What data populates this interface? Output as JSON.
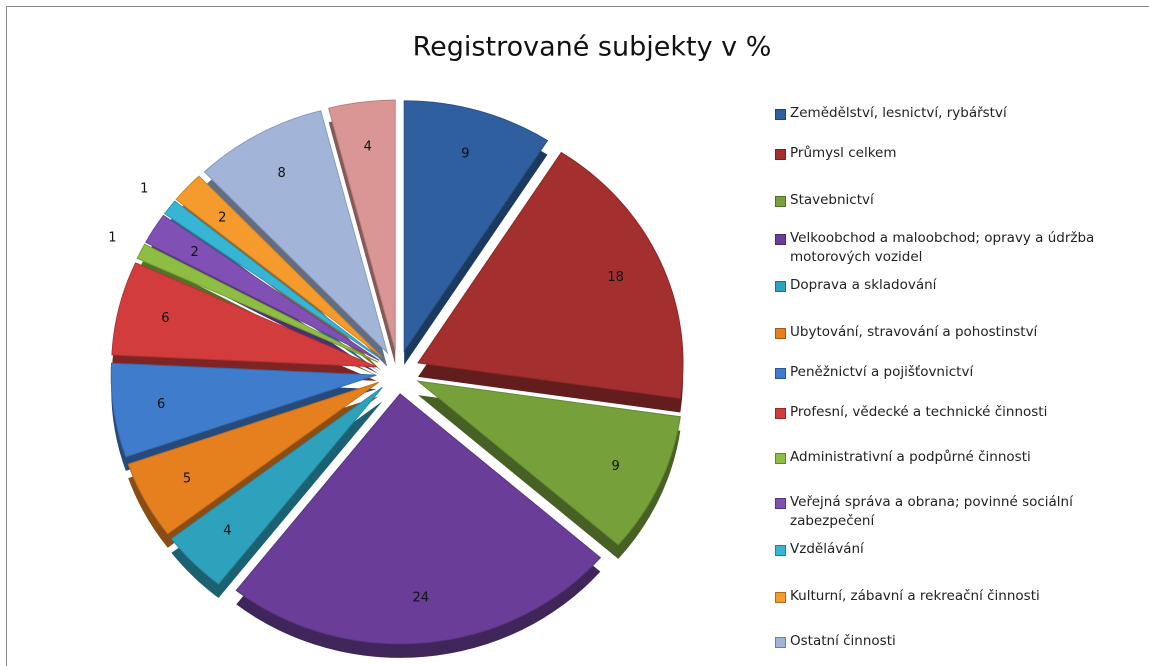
{
  "chart_data": {
    "type": "pie",
    "title": "Registrované subjekty v %",
    "categories": [
      "Zemědělství, lesnictví, rybářství",
      "Průmysl celkem",
      "Stavebnictví",
      "Velkoobchod a maloobchod; opravy a údržba motorových vozidel",
      "Doprava a skladování",
      "Ubytování, stravování a pohostinství",
      "Peněžnictví a pojišťovnictví",
      "Profesní, vědecké a technické činnosti",
      "Administrativní a podpůrné činnosti",
      "Veřejná správa a obrana; povinné sociální zabezpečení",
      "Vzdělávání",
      "Kulturní, zábavní a rekreační činnosti",
      "Ostatní činnosti",
      null
    ],
    "values": [
      9,
      18,
      9,
      24,
      4,
      5,
      6,
      6,
      1,
      2,
      1,
      2,
      8,
      4
    ],
    "colors": [
      "#2f5f9f",
      "#a3302f",
      "#76a03a",
      "#6a3e98",
      "#2ea2bd",
      "#e6801f",
      "#3f7ccc",
      "#d23c3c",
      "#8dbd43",
      "#8150b5",
      "#36b5d5",
      "#f59b2e",
      "#a2b5d8",
      "#d99694"
    ],
    "legend": "right"
  }
}
